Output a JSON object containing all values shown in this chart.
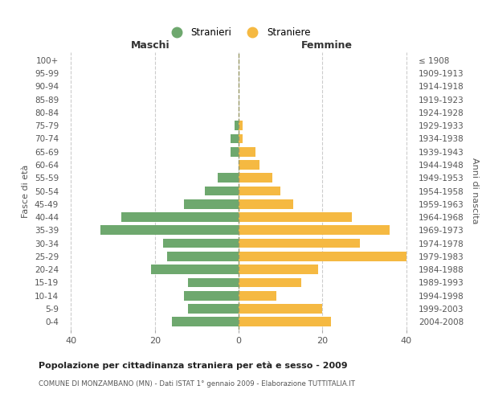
{
  "age_groups": [
    "100+",
    "95-99",
    "90-94",
    "85-89",
    "80-84",
    "75-79",
    "70-74",
    "65-69",
    "60-64",
    "55-59",
    "50-54",
    "45-49",
    "40-44",
    "35-39",
    "30-34",
    "25-29",
    "20-24",
    "15-19",
    "10-14",
    "5-9",
    "0-4"
  ],
  "birth_years": [
    "≤ 1908",
    "1909-1913",
    "1914-1918",
    "1919-1923",
    "1924-1928",
    "1929-1933",
    "1934-1938",
    "1939-1943",
    "1944-1948",
    "1949-1953",
    "1954-1958",
    "1959-1963",
    "1964-1968",
    "1969-1973",
    "1974-1978",
    "1979-1983",
    "1984-1988",
    "1989-1993",
    "1994-1998",
    "1999-2003",
    "2004-2008"
  ],
  "maschi": [
    0,
    0,
    0,
    0,
    0,
    1,
    2,
    2,
    0,
    5,
    8,
    13,
    28,
    33,
    18,
    17,
    21,
    12,
    13,
    12,
    16
  ],
  "femmine": [
    0,
    0,
    0,
    0,
    0,
    1,
    1,
    4,
    5,
    8,
    10,
    13,
    27,
    36,
    29,
    40,
    19,
    15,
    9,
    20,
    22
  ],
  "color_maschi": "#6ea86e",
  "color_femmine": "#f5b942",
  "title_main": "Popolazione per cittadinanza straniera per età e sesso - 2009",
  "title_sub": "COMUNE DI MONZAMBANO (MN) - Dati ISTAT 1° gennaio 2009 - Elaborazione TUTTITALIA.IT",
  "legend_maschi": "Stranieri",
  "legend_femmine": "Straniere",
  "xlabel_left": "Maschi",
  "xlabel_right": "Femmine",
  "ylabel_left": "Fasce di età",
  "ylabel_right": "Anni di nascita",
  "xlim": 42,
  "background_color": "#ffffff",
  "grid_color": "#cccccc"
}
